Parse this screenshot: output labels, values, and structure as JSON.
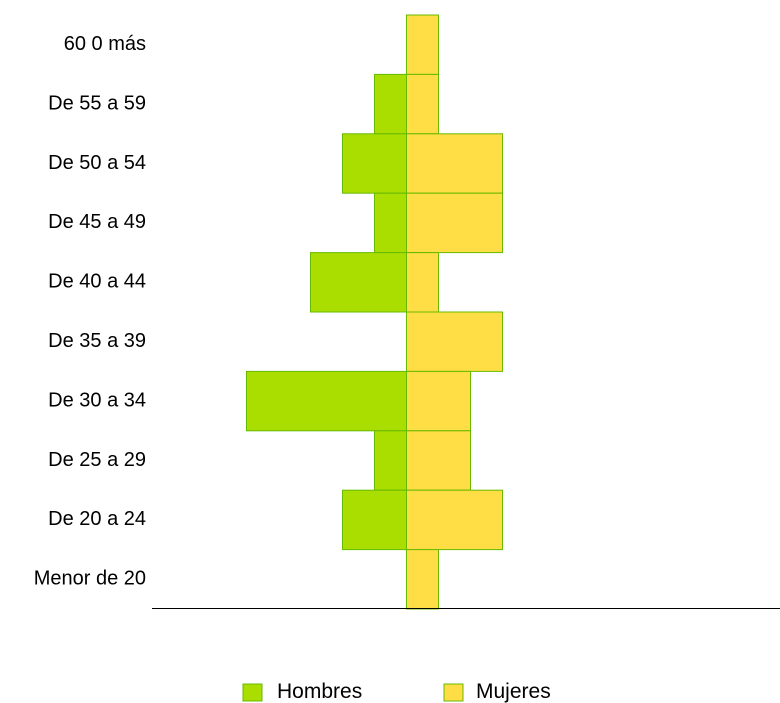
{
  "chart_data": {
    "type": "bar",
    "orientation": "horizontal",
    "layout": "population-pyramid",
    "categories": [
      "60 0 más",
      "De 55 a 59",
      "De 50 a  54",
      "De 45 a 49",
      "De 40 a 44",
      "De 35 a 39",
      "De 30 a 34",
      "De 25 a 29",
      "De 20 a 24",
      "Menor de 20"
    ],
    "series": [
      {
        "name": "Hombres",
        "color": "#aadd00",
        "values": [
          0,
          1,
          2,
          1,
          3,
          0,
          5,
          1,
          2,
          0
        ]
      },
      {
        "name": "Mujeres",
        "color": "#ffdd44",
        "values": [
          1,
          1,
          3,
          3,
          1,
          3,
          2,
          2,
          3,
          1
        ]
      }
    ],
    "border_color": "#66bb00",
    "xlim": [
      -5,
      11.5
    ],
    "grid": false,
    "legend": "bottom-center",
    "title": "",
    "xlabel": "",
    "ylabel": ""
  }
}
